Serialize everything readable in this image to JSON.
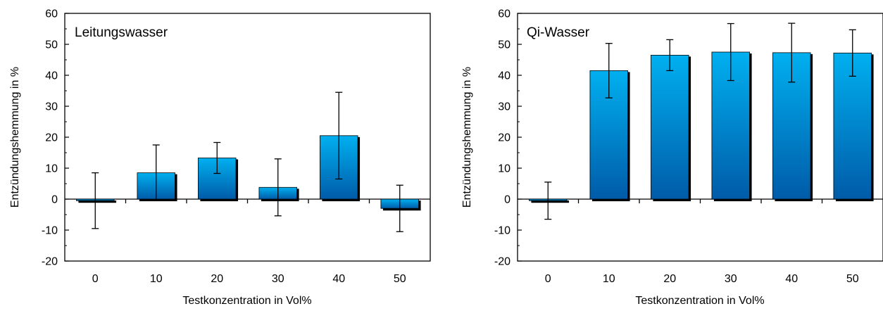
{
  "chart_data": [
    {
      "type": "bar",
      "title": "Leitungswasser",
      "xlabel": "Testkonzentration in Vol%",
      "ylabel": "Entzündungshemmung in %",
      "categories": [
        "0",
        "10",
        "20",
        "30",
        "40",
        "50"
      ],
      "values": [
        -0.5,
        8.5,
        13.3,
        3.8,
        20.5,
        -3.0
      ],
      "error": [
        9.0,
        9.0,
        5.0,
        9.2,
        14.0,
        7.5
      ],
      "ylim": [
        -20,
        60
      ],
      "yticks": [
        -20,
        -10,
        0,
        10,
        20,
        30,
        40,
        50,
        60
      ],
      "grid": false
    },
    {
      "type": "bar",
      "title": "Qi-Wasser",
      "xlabel": "Testkonzentration in Vol%",
      "ylabel": "Entzündungshemmung in %",
      "categories": [
        "0",
        "10",
        "20",
        "30",
        "40",
        "50"
      ],
      "values": [
        -0.5,
        41.5,
        46.5,
        47.5,
        47.3,
        47.2
      ],
      "error": [
        6.0,
        8.8,
        5.0,
        9.2,
        9.5,
        7.5
      ],
      "ylim": [
        -20,
        60
      ],
      "yticks": [
        -20,
        -10,
        0,
        10,
        20,
        30,
        40,
        50,
        60
      ],
      "grid": false
    }
  ],
  "colors": {
    "bar_top": "#00b0f0",
    "bar_bottom": "#005ba8",
    "bar_shadow": "#000000",
    "axis": "#000000"
  }
}
